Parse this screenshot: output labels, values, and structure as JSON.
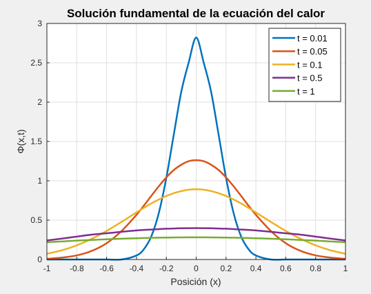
{
  "chart_data": {
    "type": "line",
    "title": "Solución fundamental de la ecuación del calor",
    "xlabel": "Posición (x)",
    "ylabel": "Φ(x,t)",
    "xlim": [
      -1,
      1
    ],
    "ylim": [
      0,
      3
    ],
    "x_ticks": [
      "-1",
      "-0.8",
      "-0.6",
      "-0.4",
      "-0.2",
      "0",
      "0.2",
      "0.4",
      "0.6",
      "0.8",
      "1"
    ],
    "y_ticks": [
      "0",
      "0.5",
      "1",
      "1.5",
      "2",
      "2.5",
      "3"
    ],
    "grid": true,
    "legend_position": "top-right",
    "x": [
      -1.0,
      -0.9,
      -0.8,
      -0.7,
      -0.6,
      -0.5,
      -0.4,
      -0.35,
      -0.3,
      -0.25,
      -0.2,
      -0.15,
      -0.1,
      -0.05,
      0.0,
      0.05,
      0.1,
      0.15,
      0.2,
      0.25,
      0.3,
      0.35,
      0.4,
      0.5,
      0.6,
      0.7,
      0.8,
      0.9,
      1.0
    ],
    "series": [
      {
        "name": "t = 0.01",
        "color": "#0072bd",
        "values": [
          0.0,
          0.0,
          0.0,
          0.0,
          0.0,
          0.0,
          0.051,
          0.132,
          0.297,
          0.594,
          1.038,
          1.588,
          2.131,
          2.505,
          2.821,
          2.505,
          2.131,
          1.588,
          1.038,
          0.594,
          0.297,
          0.132,
          0.051,
          0.0,
          0.0,
          0.0,
          0.0,
          0.0,
          0.0
        ]
      },
      {
        "name": "t = 0.05",
        "color": "#d95319",
        "values": [
          0.009,
          0.024,
          0.052,
          0.109,
          0.207,
          0.362,
          0.568,
          0.686,
          0.81,
          0.932,
          1.043,
          1.137,
          1.204,
          1.249,
          1.262,
          1.249,
          1.204,
          1.137,
          1.043,
          0.932,
          0.81,
          0.686,
          0.568,
          0.362,
          0.207,
          0.109,
          0.052,
          0.024,
          0.009
        ]
      },
      {
        "name": "t = 0.1",
        "color": "#edb120",
        "values": [
          0.073,
          0.117,
          0.18,
          0.263,
          0.363,
          0.478,
          0.598,
          0.657,
          0.713,
          0.763,
          0.807,
          0.843,
          0.869,
          0.887,
          0.892,
          0.887,
          0.869,
          0.843,
          0.807,
          0.763,
          0.713,
          0.657,
          0.598,
          0.478,
          0.363,
          0.263,
          0.18,
          0.117,
          0.073
        ]
      },
      {
        "name": "t = 0.5",
        "color": "#7e2f8e",
        "values": [
          0.242,
          0.265,
          0.291,
          0.316,
          0.333,
          0.352,
          0.369,
          0.376,
          0.381,
          0.386,
          0.391,
          0.394,
          0.397,
          0.398,
          0.399,
          0.398,
          0.397,
          0.394,
          0.391,
          0.386,
          0.381,
          0.376,
          0.369,
          0.352,
          0.333,
          0.316,
          0.291,
          0.265,
          0.242
        ]
      },
      {
        "name": "t = 1",
        "color": "#77ac30",
        "values": [
          0.22,
          0.229,
          0.24,
          0.248,
          0.257,
          0.264,
          0.27,
          0.273,
          0.275,
          0.277,
          0.279,
          0.28,
          0.281,
          0.282,
          0.282,
          0.282,
          0.281,
          0.28,
          0.279,
          0.277,
          0.275,
          0.273,
          0.27,
          0.264,
          0.257,
          0.248,
          0.24,
          0.229,
          0.22
        ]
      }
    ]
  }
}
